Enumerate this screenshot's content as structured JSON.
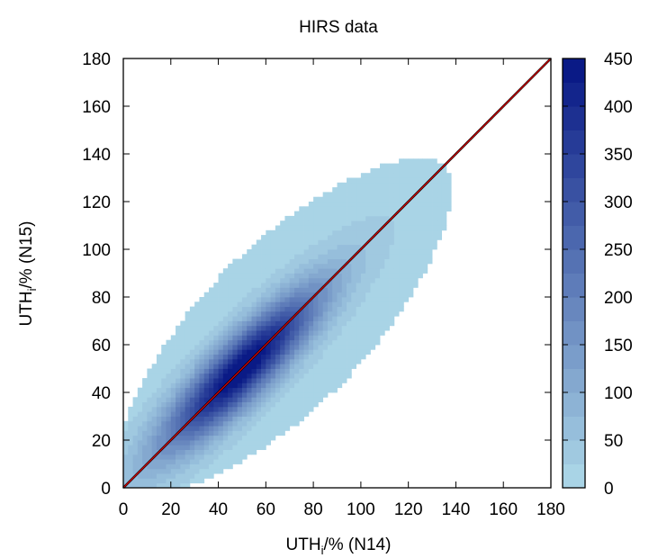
{
  "chart_data": {
    "type": "heatmap",
    "title": "HIRS data",
    "xlabel": {
      "main": "UTH",
      "sub": "i",
      "rest": "/% (N14)"
    },
    "ylabel": {
      "main": "UTH",
      "sub": "i",
      "rest": "/% (N15)"
    },
    "xlim": [
      0,
      180
    ],
    "ylim": [
      0,
      180
    ],
    "xticks": [
      "0",
      "20",
      "40",
      "60",
      "80",
      "100",
      "120",
      "140",
      "160",
      "180"
    ],
    "yticks": [
      "0",
      "20",
      "40",
      "60",
      "80",
      "100",
      "120",
      "140",
      "160",
      "180"
    ],
    "colorbar": {
      "range": [
        0,
        450
      ],
      "ticks": [
        "0",
        "50",
        "100",
        "150",
        "200",
        "250",
        "300",
        "350",
        "400",
        "450"
      ],
      "levels": 18,
      "low_color": "#a9d4e6",
      "high_color": "#0a1a86"
    },
    "density": {
      "description_values": "approximate count density of N15 vs N14 UTH_i, peaking near 50,50",
      "peak_point": [
        50,
        50
      ],
      "peak_count": 450,
      "along_diagonal_extent": [
        0,
        135
      ],
      "cross_diagonal_halfwidth": 32,
      "cell_size": 2
    },
    "reference_lines": [
      {
        "name": "1:1 line",
        "color": "#000000",
        "from": [
          0,
          0
        ],
        "to": [
          180,
          180
        ]
      },
      {
        "name": "fit line",
        "color": "#cc0000",
        "from": [
          0,
          0
        ],
        "to": [
          180,
          180
        ]
      }
    ],
    "grid": false,
    "legend": "colorbar-right"
  }
}
